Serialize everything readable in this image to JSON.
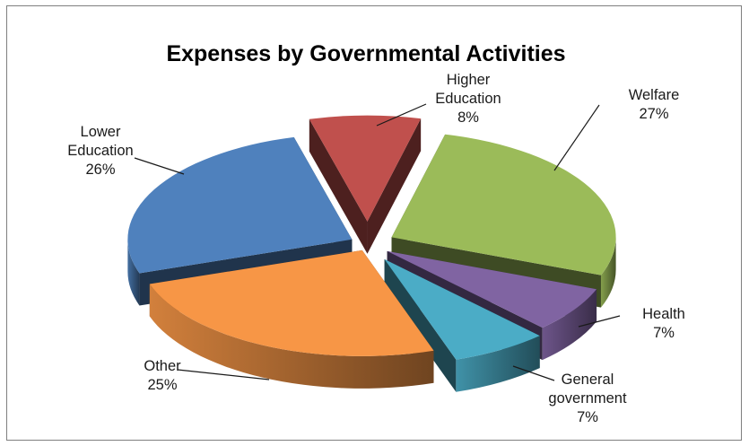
{
  "chart_data": {
    "type": "pie",
    "style": "3d-exploded",
    "title": "Expenses by Governmental Activities",
    "unit": "%",
    "slices": [
      {
        "label": "Higher Education",
        "label_lines": [
          "Higher",
          "Education"
        ],
        "value": 8,
        "value_text": "8%",
        "color": "#C0504D"
      },
      {
        "label": "Welfare",
        "label_lines": [
          "Welfare"
        ],
        "value": 27,
        "value_text": "27%",
        "color": "#9BBB59"
      },
      {
        "label": "Health",
        "label_lines": [
          "Health"
        ],
        "value": 7,
        "value_text": "7%",
        "color": "#8064A2"
      },
      {
        "label": "General government",
        "label_lines": [
          "General",
          "government"
        ],
        "value": 7,
        "value_text": "7%",
        "color": "#4BACC6"
      },
      {
        "label": "Other",
        "label_lines": [
          "Other"
        ],
        "value": 25,
        "value_text": "25%",
        "color": "#F79646"
      },
      {
        "label": "Lower Education",
        "label_lines": [
          "Lower",
          "Education"
        ],
        "value": 26,
        "value_text": "26%",
        "color": "#4F81BD"
      }
    ],
    "legend": "none"
  }
}
